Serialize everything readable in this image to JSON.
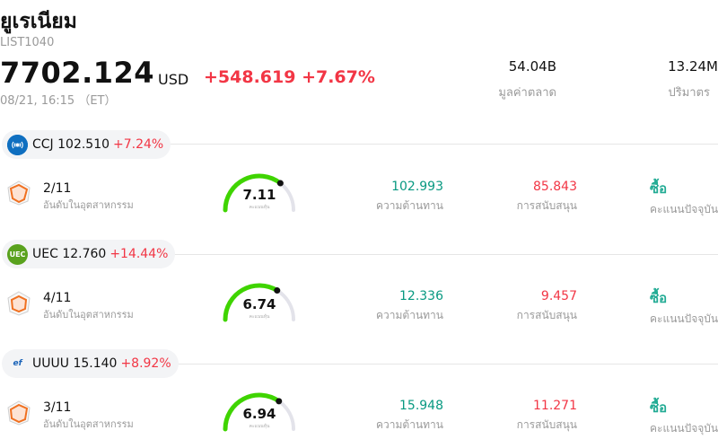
{
  "header": {
    "title": "ยูเรเนียม",
    "code": "LIST1040",
    "price": "7702.124",
    "currency": "USD",
    "change": "+548.619 +7.67%",
    "time": "08/21, 16:15 （ET）",
    "market_cap_value": "54.04B",
    "market_cap_label": "มูลค่าตลาด",
    "volume_value": "13.24M",
    "volume_label": "ปริมาตร"
  },
  "colors": {
    "up_red": "#f23645",
    "resistance_green": "#089981",
    "buy_teal": "#22ab94",
    "gauge_green": "#3fd400"
  },
  "stocks": [
    {
      "symbol_price": "CCJ 102.510",
      "change": "+7.24%",
      "logo_icon": "ccj-logo-icon",
      "rank": "2/11",
      "rank_label": "อันดับในอุตสาหกรรม",
      "score": "7.11",
      "score_value": 7.11,
      "score_label": "คะแนนหุ้น",
      "resistance": "102.993",
      "resistance_label": "ความต้านทาน",
      "support": "85.843",
      "support_label": "การสนับสนุน",
      "rating": "ซื้อ",
      "rating_label": "คะแนนปัจจุบัน"
    },
    {
      "symbol_price": "UEC 12.760",
      "change": "+14.44%",
      "logo_icon": "uec-logo-icon",
      "logo_text": "UEC",
      "rank": "4/11",
      "rank_label": "อันดับในอุตสาหกรรม",
      "score": "6.74",
      "score_value": 6.74,
      "score_label": "คะแนนหุ้น",
      "resistance": "12.336",
      "resistance_label": "ความต้านทาน",
      "support": "9.457",
      "support_label": "การสนับสนุน",
      "rating": "ซื้อ",
      "rating_label": "คะแนนปัจจุบัน"
    },
    {
      "symbol_price": "UUUU 15.140",
      "change": "+8.92%",
      "logo_icon": "uuuu-logo-icon",
      "logo_text": "ef",
      "rank": "3/11",
      "rank_label": "อันดับในอุตสาหกรรม",
      "score": "6.94",
      "score_value": 6.94,
      "score_label": "คะแนนหุ้น",
      "resistance": "15.948",
      "resistance_label": "ความต้านทาน",
      "support": "11.271",
      "support_label": "การสนับสนุน",
      "rating": "ซื้อ",
      "rating_label": "คะแนนปัจจุบัน"
    }
  ]
}
